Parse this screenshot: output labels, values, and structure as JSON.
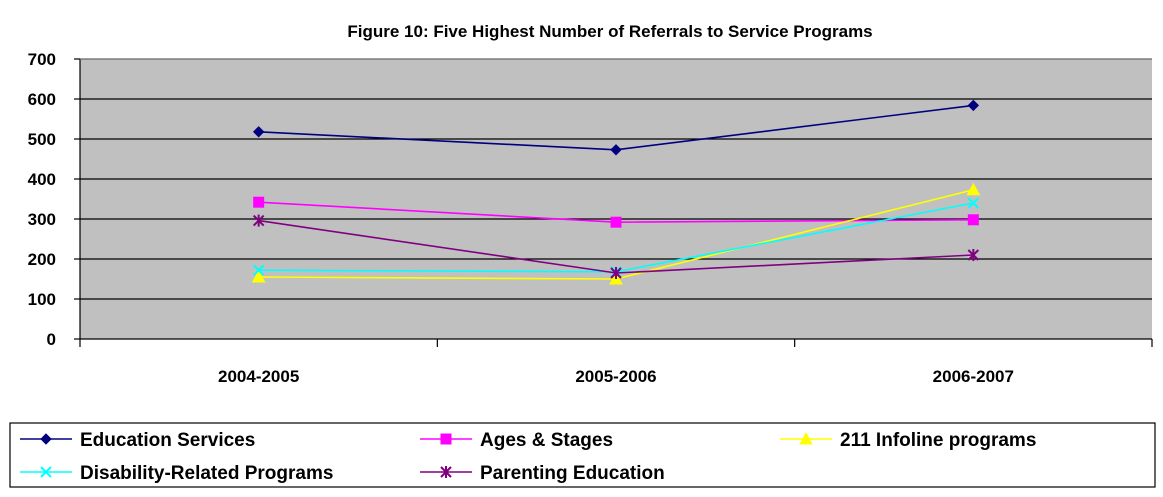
{
  "chart_data": {
    "type": "line",
    "title": "Figure 10: Five Highest Number of Referrals to Service Programs",
    "xlabel": "",
    "ylabel": "",
    "categories": [
      "2004-2005",
      "2005-2006",
      "2006-2007"
    ],
    "ylim": [
      0,
      700
    ],
    "yticks": [
      0,
      100,
      200,
      300,
      400,
      500,
      600,
      700
    ],
    "grid": true,
    "legend_position": "bottom",
    "series": [
      {
        "name": "Education Services",
        "values": [
          518,
          473,
          584
        ],
        "color": "#000080",
        "marker": "diamond"
      },
      {
        "name": "Ages & Stages",
        "values": [
          342,
          292,
          298
        ],
        "color": "#ff00ff",
        "marker": "square"
      },
      {
        "name": "211 Infoline programs",
        "values": [
          155,
          150,
          373
        ],
        "color": "#ffff00",
        "marker": "triangle"
      },
      {
        "name": "Disability-Related Programs",
        "values": [
          172,
          168,
          340
        ],
        "color": "#00ffff",
        "marker": "x"
      },
      {
        "name": "Parenting Education",
        "values": [
          296,
          165,
          210
        ],
        "color": "#800080",
        "marker": "star"
      }
    ],
    "plot_background": "#c0c0c0"
  }
}
